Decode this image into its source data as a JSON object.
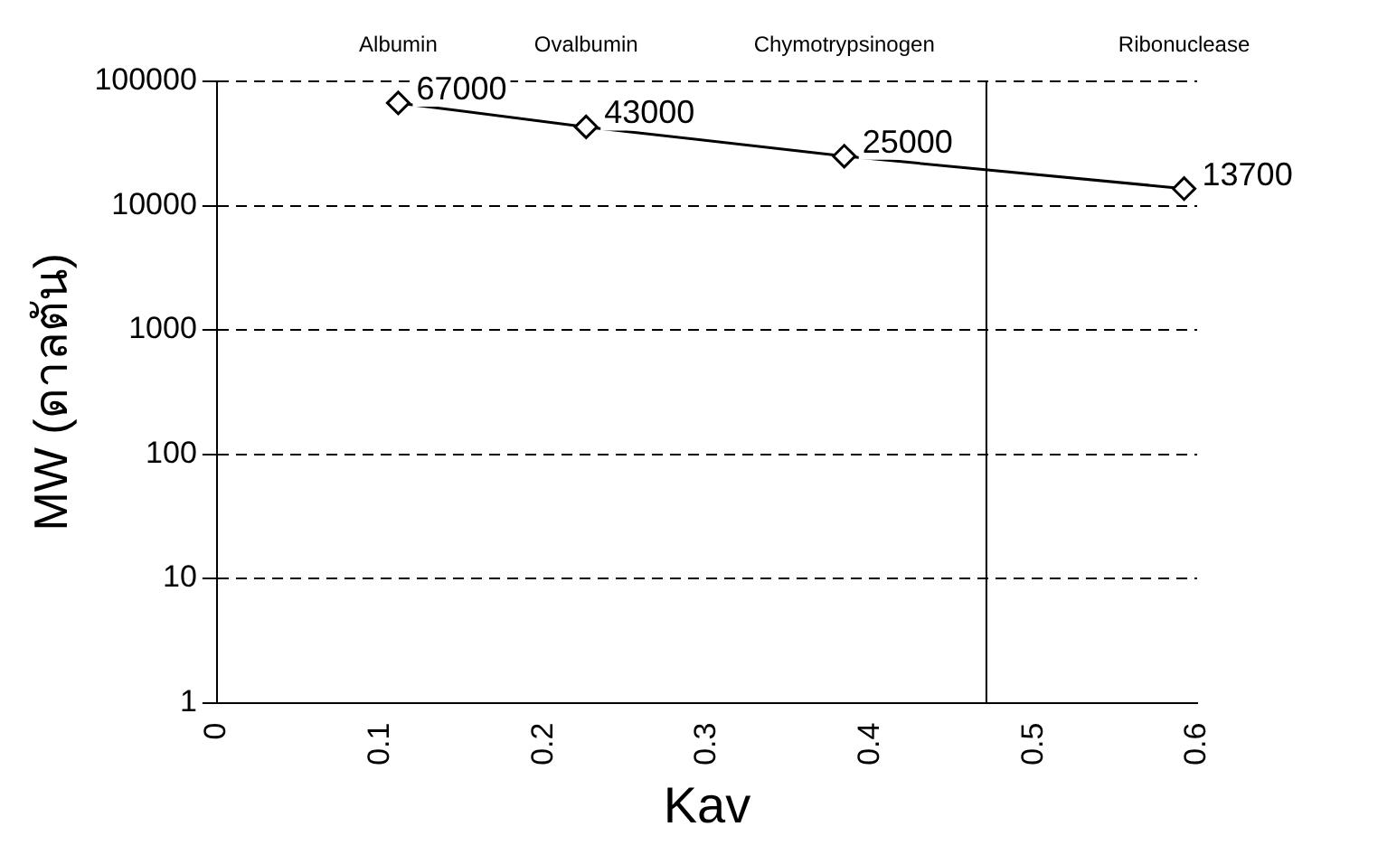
{
  "chart_data": {
    "type": "line",
    "xlabel": "Kav",
    "ylabel": "MW (ดาลตัน)",
    "x": [
      0.111,
      0.226,
      0.384,
      0.592
    ],
    "series": [
      {
        "color": "#000000",
        "values": [
          67000,
          43000,
          25000,
          13700
        ]
      }
    ],
    "data_labels": true,
    "marker": "diamond",
    "line_style": "solid",
    "log": "y",
    "grid": "y",
    "legend": false,
    "xlim": [
      0,
      0.6
    ],
    "xticks": [
      0,
      0.1,
      0.2,
      0.3,
      0.4,
      0.5,
      0.6
    ],
    "ylim": [
      1,
      100000
    ],
    "yticks": [
      1,
      10,
      100,
      1000,
      10000,
      100000
    ],
    "ref_lines": [
      {
        "axis": "x",
        "value": 0.471,
        "label": null
      }
    ],
    "annotations": [
      "Albumin",
      "Ovalbumin",
      "Chymotrypsinogen",
      "Ribonuclease"
    ]
  }
}
